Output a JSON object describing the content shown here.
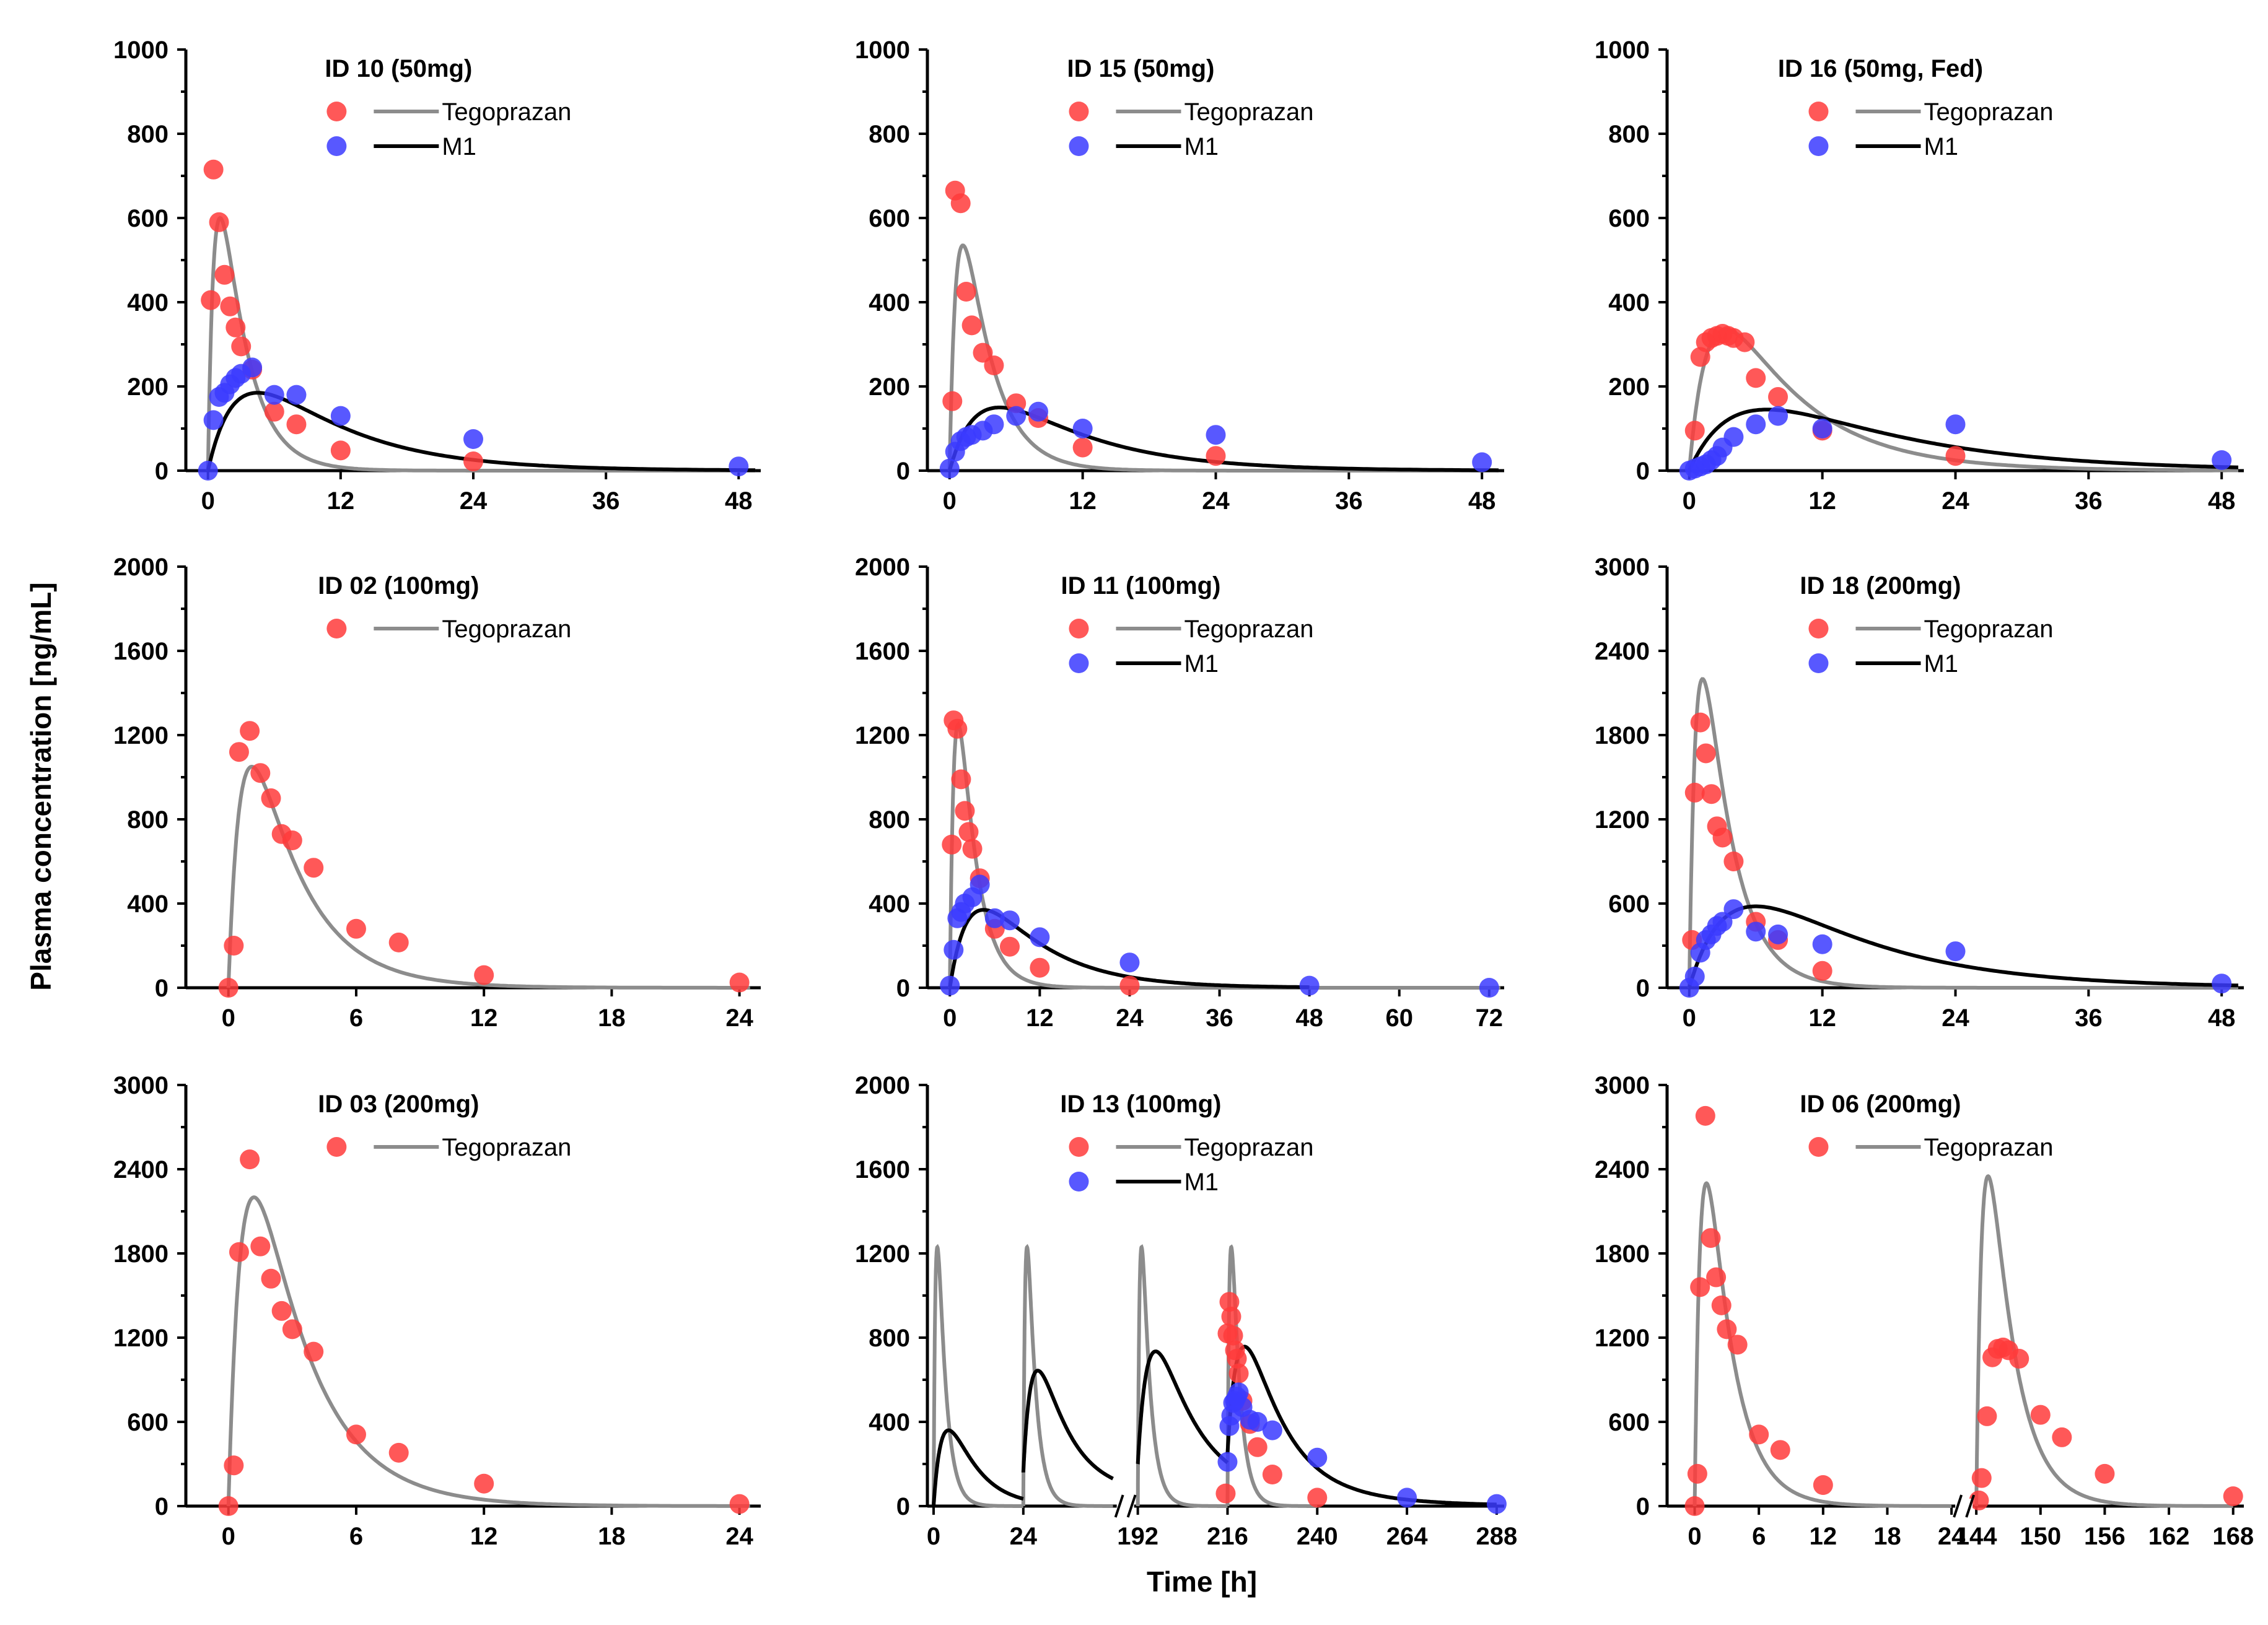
{
  "xlabel": "Time [h]",
  "ylabel": "Plasma concentration [ng/mL]",
  "chart_data": [
    {
      "type": "scatter",
      "title": "ID 10 (50mg)",
      "legend": [
        "Tegoprazan",
        "M1"
      ],
      "xticks": [
        0,
        12,
        24,
        36,
        48
      ],
      "xlim": [
        -2,
        50
      ],
      "ylim": [
        0,
        1000
      ],
      "yticks": [
        0,
        200,
        400,
        600,
        800,
        1000
      ],
      "series": [
        {
          "name": "Tegoprazan",
          "kind": "points",
          "x": [
            0.25,
            0.5,
            1,
            1.5,
            2,
            2.5,
            3,
            4,
            6,
            8,
            12,
            24
          ],
          "y": [
            405,
            715,
            590,
            465,
            390,
            340,
            295,
            240,
            140,
            110,
            48,
            22
          ]
        },
        {
          "name": "M1",
          "kind": "points",
          "x": [
            0,
            0.5,
            1,
            1.5,
            2,
            2.5,
            3,
            4,
            6,
            8,
            12,
            24,
            48
          ],
          "y": [
            0,
            120,
            175,
            185,
            205,
            220,
            230,
            245,
            180,
            180,
            130,
            75,
            10
          ]
        },
        {
          "name": "Tegoprazan",
          "kind": "curve",
          "model": "teg",
          "peak_t": 1.1,
          "peak_c": 600,
          "t_half": 4.5,
          "t0": 0
        },
        {
          "name": "M1",
          "kind": "curve",
          "model": "m1",
          "peak_t": 4.5,
          "peak_c": 185,
          "t_half": 14,
          "t0": 0
        }
      ]
    },
    {
      "type": "scatter",
      "title": "ID 15 (50mg)",
      "legend": [
        "Tegoprazan",
        "M1"
      ],
      "xticks": [
        0,
        12,
        24,
        36,
        48
      ],
      "xlim": [
        -2,
        50
      ],
      "ylim": [
        0,
        1000
      ],
      "yticks": [
        0,
        200,
        400,
        600,
        800,
        1000
      ],
      "series": [
        {
          "name": "Tegoprazan",
          "kind": "points",
          "x": [
            0.25,
            0.5,
            1,
            1.5,
            2,
            3,
            4,
            6,
            8,
            12,
            24
          ],
          "y": [
            165,
            665,
            635,
            425,
            345,
            280,
            250,
            160,
            125,
            55,
            35
          ]
        },
        {
          "name": "M1",
          "kind": "points",
          "x": [
            0,
            0.5,
            1,
            1.5,
            2,
            3,
            4,
            6,
            8,
            12,
            24,
            48
          ],
          "y": [
            5,
            45,
            70,
            80,
            85,
            95,
            110,
            130,
            140,
            100,
            85,
            20
          ]
        },
        {
          "name": "Tegoprazan",
          "kind": "curve",
          "model": "teg",
          "peak_t": 1.2,
          "peak_c": 535,
          "t_half": 4.5,
          "t0": 0
        },
        {
          "name": "M1",
          "kind": "curve",
          "model": "m1",
          "peak_t": 4.5,
          "peak_c": 150,
          "t_half": 16,
          "t0": 0
        }
      ]
    },
    {
      "type": "scatter",
      "title": "ID 16 (50mg, Fed)",
      "legend": [
        "Tegoprazan",
        "M1"
      ],
      "xticks": [
        0,
        12,
        24,
        36,
        48
      ],
      "xlim": [
        -2,
        50
      ],
      "ylim": [
        0,
        1000
      ],
      "yticks": [
        0,
        200,
        400,
        600,
        800,
        1000
      ],
      "series": [
        {
          "name": "Tegoprazan",
          "kind": "points",
          "x": [
            0.5,
            1,
            1.5,
            2,
            2.5,
            3,
            3.5,
            4,
            5,
            6,
            8,
            12,
            24
          ],
          "y": [
            95,
            270,
            305,
            315,
            320,
            325,
            320,
            315,
            305,
            220,
            175,
            95,
            35
          ]
        },
        {
          "name": "M1",
          "kind": "points",
          "x": [
            0,
            0.5,
            1,
            1.5,
            2,
            2.5,
            3,
            4,
            6,
            8,
            12,
            24,
            48
          ],
          "y": [
            0,
            5,
            10,
            15,
            25,
            35,
            55,
            80,
            110,
            130,
            100,
            110,
            25
          ]
        },
        {
          "name": "Tegoprazan",
          "kind": "curve",
          "model": "teg",
          "peak_t": 3.3,
          "peak_c": 335,
          "t_half": 3.5,
          "t0": 0
        },
        {
          "name": "M1",
          "kind": "curve",
          "model": "m1",
          "peak_t": 7,
          "peak_c": 145,
          "t_half": 16,
          "t0": 0
        }
      ]
    },
    {
      "type": "scatter",
      "title": "ID 02 (100mg)",
      "legend": [
        "Tegoprazan"
      ],
      "xticks": [
        0,
        6,
        12,
        18,
        24
      ],
      "xlim": [
        -2,
        25
      ],
      "ylim": [
        0,
        2000
      ],
      "yticks": [
        0,
        400,
        800,
        1200,
        1600,
        2000
      ],
      "series": [
        {
          "name": "Tegoprazan",
          "kind": "points",
          "x": [
            0,
            0.25,
            0.5,
            1,
            1.5,
            2,
            2.5,
            3,
            4,
            6,
            8,
            12,
            24
          ],
          "y": [
            0,
            200,
            1120,
            1220,
            1020,
            900,
            730,
            700,
            570,
            280,
            215,
            60,
            25
          ]
        },
        {
          "name": "Tegoprazan",
          "kind": "curve",
          "model": "teg",
          "peak_t": 1.1,
          "peak_c": 1050,
          "t_half": 4.2,
          "t0": 0
        }
      ]
    },
    {
      "type": "scatter",
      "title": "ID 11 (100mg)",
      "legend": [
        "Tegoprazan",
        "M1"
      ],
      "xticks": [
        0,
        12,
        24,
        36,
        48,
        60,
        72
      ],
      "xlim": [
        -3,
        74
      ],
      "ylim": [
        0,
        2000
      ],
      "yticks": [
        0,
        400,
        800,
        1200,
        1600,
        2000
      ],
      "series": [
        {
          "name": "Tegoprazan",
          "kind": "points",
          "x": [
            0.25,
            0.5,
            1,
            1.5,
            2,
            2.5,
            3,
            4,
            6,
            8,
            12,
            24
          ],
          "y": [
            680,
            1270,
            1230,
            990,
            840,
            740,
            660,
            520,
            280,
            195,
            95,
            10
          ]
        },
        {
          "name": "M1",
          "kind": "points",
          "x": [
            0,
            0.5,
            1,
            1.5,
            2,
            3,
            4,
            6,
            8,
            12,
            24,
            48,
            72
          ],
          "y": [
            10,
            180,
            330,
            360,
            400,
            430,
            490,
            330,
            320,
            240,
            120,
            10,
            0
          ]
        },
        {
          "name": "Tegoprazan",
          "kind": "curve",
          "model": "teg",
          "peak_t": 1.1,
          "peak_c": 1250,
          "t_half": 3.5,
          "t0": 0
        },
        {
          "name": "M1",
          "kind": "curve",
          "model": "m1",
          "peak_t": 4.5,
          "peak_c": 370,
          "t_half": 10,
          "t0": 0,
          "t_end": 48
        }
      ]
    },
    {
      "type": "scatter",
      "title": "ID 18 (200mg)",
      "legend": [
        "Tegoprazan",
        "M1"
      ],
      "xticks": [
        0,
        12,
        24,
        36,
        48
      ],
      "xlim": [
        -2,
        50
      ],
      "ylim": [
        0,
        3000
      ],
      "yticks": [
        0,
        600,
        1200,
        1800,
        2400,
        3000
      ],
      "series": [
        {
          "name": "Tegoprazan",
          "kind": "points",
          "x": [
            0.25,
            0.5,
            1,
            1.5,
            2,
            2.5,
            3,
            4,
            6,
            8,
            12
          ],
          "y": [
            340,
            1390,
            1890,
            1670,
            1380,
            1150,
            1070,
            900,
            470,
            340,
            120
          ]
        },
        {
          "name": "M1",
          "kind": "points",
          "x": [
            0,
            0.5,
            1,
            1.5,
            2,
            2.5,
            3,
            4,
            6,
            8,
            12,
            24,
            48
          ],
          "y": [
            0,
            80,
            250,
            340,
            380,
            440,
            470,
            560,
            400,
            380,
            310,
            260,
            30
          ]
        },
        {
          "name": "Tegoprazan",
          "kind": "curve",
          "model": "teg",
          "peak_t": 1.2,
          "peak_c": 2200,
          "t_half": 3.5,
          "t0": 0
        },
        {
          "name": "M1",
          "kind": "curve",
          "model": "m1",
          "peak_t": 6,
          "peak_c": 580,
          "t_half": 20,
          "t0": 0
        }
      ]
    },
    {
      "type": "scatter",
      "title": "ID 03 (200mg)",
      "legend": [
        "Tegoprazan"
      ],
      "xticks": [
        0,
        6,
        12,
        18,
        24
      ],
      "xlim": [
        -2,
        25
      ],
      "ylim": [
        0,
        3000
      ],
      "yticks": [
        0,
        600,
        1200,
        1800,
        2400,
        3000
      ],
      "series": [
        {
          "name": "Tegoprazan",
          "kind": "points",
          "x": [
            0,
            0.25,
            0.5,
            1,
            1.5,
            2,
            2.5,
            3,
            4,
            6,
            8,
            12,
            24
          ],
          "y": [
            0,
            290,
            1810,
            2470,
            1850,
            1620,
            1390,
            1260,
            1100,
            510,
            380,
            160,
            15
          ]
        },
        {
          "name": "Tegoprazan",
          "kind": "curve",
          "model": "teg",
          "peak_t": 1.2,
          "peak_c": 2200,
          "t_half": 4.5,
          "t0": 0
        }
      ]
    },
    {
      "type": "scatter",
      "title": "ID 13 (100mg)",
      "legend": [
        "Tegoprazan",
        "M1"
      ],
      "broken_axis": true,
      "xticks": [
        0,
        24,
        192,
        216,
        240,
        264,
        288
      ],
      "segments": [
        {
          "from": 0,
          "to": 48
        },
        {
          "from": 192,
          "to": 290
        }
      ],
      "ylim": [
        0,
        2000
      ],
      "yticks": [
        0,
        400,
        800,
        1200,
        1600,
        2000
      ],
      "series": [
        {
          "name": "Tegoprazan",
          "kind": "points",
          "x": [
            215.5,
            216,
            216.5,
            217,
            217.5,
            218,
            218.5,
            219,
            220,
            222,
            224,
            228,
            240
          ],
          "y": [
            60,
            820,
            970,
            900,
            810,
            740,
            700,
            630,
            500,
            390,
            280,
            150,
            40
          ]
        },
        {
          "name": "M1",
          "kind": "points",
          "x": [
            216,
            216.5,
            217,
            217.5,
            218,
            218.5,
            219,
            220,
            222,
            224,
            228,
            240,
            264,
            288
          ],
          "y": [
            210,
            380,
            430,
            490,
            500,
            520,
            540,
            470,
            410,
            400,
            360,
            230,
            40,
            10
          ]
        },
        {
          "name": "Tegoprazan",
          "kind": "curve",
          "model": "teg",
          "peak_t": 1,
          "peak_c": 1230,
          "t_half": 4,
          "t0": 0,
          "t_end": 24
        },
        {
          "name": "Tegoprazan",
          "kind": "curve",
          "model": "teg",
          "peak_t": 1,
          "peak_c": 1230,
          "t_half": 4,
          "t0": 24,
          "t_end": 48
        },
        {
          "name": "Tegoprazan",
          "kind": "curve",
          "model": "teg",
          "peak_t": 1,
          "peak_c": 1230,
          "t_half": 4,
          "t0": 192,
          "t_end": 216
        },
        {
          "name": "Tegoprazan",
          "kind": "curve",
          "model": "teg",
          "peak_t": 1,
          "peak_c": 1230,
          "t_half": 4,
          "t0": 216,
          "t_end": 240
        },
        {
          "name": "M1",
          "kind": "curve",
          "model": "m1",
          "peak_t": 4,
          "peak_c": 360,
          "t_half": 30,
          "t0": 0,
          "t_end": 24,
          "base": 0
        },
        {
          "name": "M1",
          "kind": "curve",
          "model": "m1",
          "peak_t": 4,
          "peak_c": 500,
          "t_half": 25,
          "t0": 24,
          "t_end": 48,
          "base": 160
        },
        {
          "name": "M1",
          "kind": "curve",
          "model": "m1",
          "peak_t": 5,
          "peak_c": 560,
          "t_half": 25,
          "t0": 192,
          "t_end": 216,
          "base": 200
        },
        {
          "name": "M1",
          "kind": "curve",
          "model": "m1",
          "peak_t": 5,
          "peak_c": 560,
          "t_half": 14,
          "t0": 216,
          "t_end": 288,
          "base": 250
        }
      ]
    },
    {
      "type": "scatter",
      "title": "ID 06 (200mg)",
      "legend": [
        "Tegoprazan"
      ],
      "broken_axis": true,
      "xticks": [
        0,
        6,
        12,
        18,
        24,
        144,
        150,
        156,
        162,
        168
      ],
      "segments": [
        {
          "from": -2,
          "to": 24
        },
        {
          "from": 144,
          "to": 169
        }
      ],
      "ylim": [
        0,
        3000
      ],
      "yticks": [
        0,
        600,
        1200,
        1800,
        2400,
        3000
      ],
      "series": [
        {
          "name": "Tegoprazan",
          "kind": "points",
          "x": [
            0,
            0.25,
            0.5,
            1,
            1.5,
            2,
            2.5,
            3,
            4,
            6,
            8,
            12,
            144.25,
            144.5,
            145,
            145.5,
            146,
            146.5,
            147,
            148,
            150,
            152,
            156,
            168
          ],
          "y": [
            0,
            230,
            1560,
            2780,
            1910,
            1630,
            1430,
            1260,
            1150,
            510,
            400,
            150,
            40,
            200,
            640,
            1060,
            1120,
            1130,
            1110,
            1050,
            650,
            490,
            230,
            70
          ]
        },
        {
          "name": "Tegoprazan",
          "kind": "curve",
          "model": "teg",
          "peak_t": 1.1,
          "peak_c": 2300,
          "t_half": 4,
          "t0": 0,
          "t_end": 24
        },
        {
          "name": "Tegoprazan",
          "kind": "curve",
          "model": "teg",
          "peak_t": 1.1,
          "peak_c": 2350,
          "t_half": 5,
          "t0": 144,
          "t_end": 168
        }
      ]
    }
  ]
}
